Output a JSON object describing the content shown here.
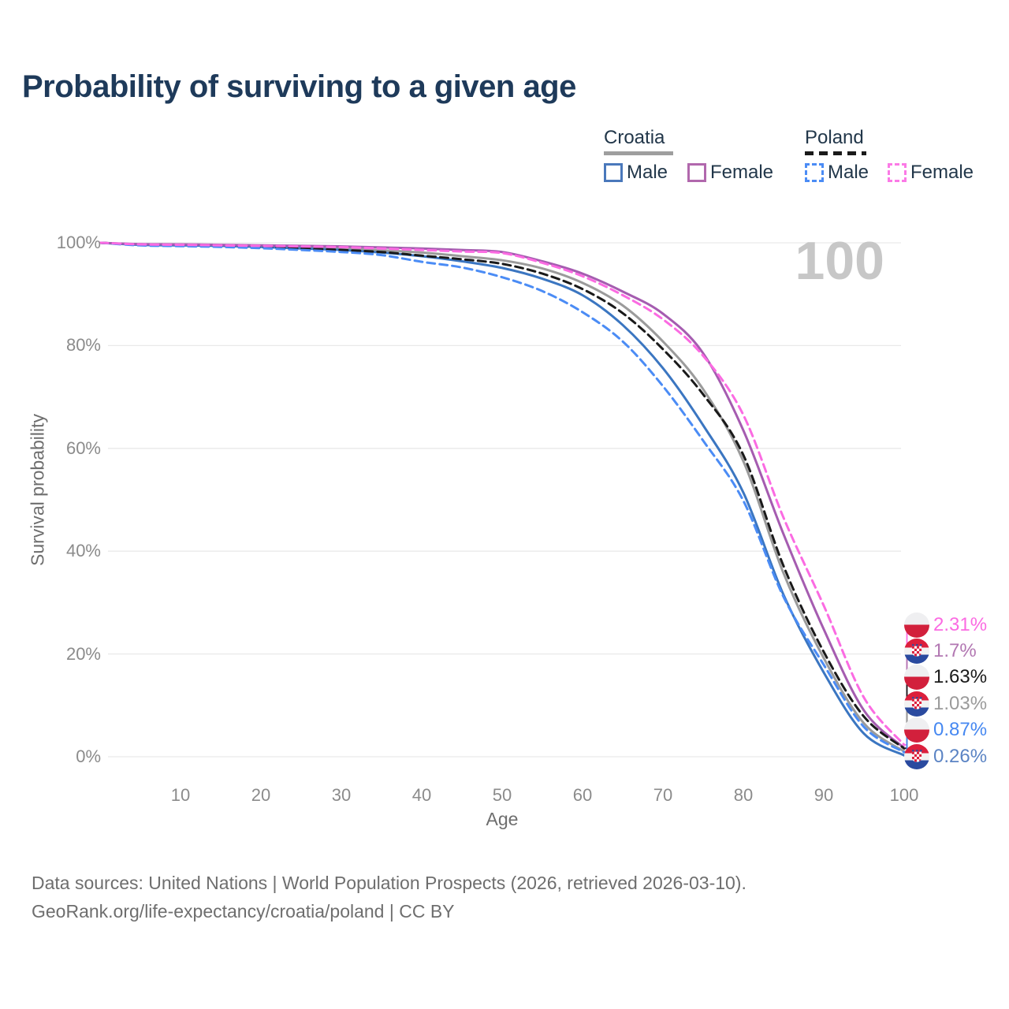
{
  "title": {
    "text": "Probability of surviving to a given age",
    "color": "#1e3a5a"
  },
  "legend": {
    "text_color": "#22374a",
    "groups": [
      {
        "label": "Croatia",
        "line_style": "solid",
        "line_color": "#9e9e9e",
        "items": [
          {
            "label": "Male",
            "style": "solid",
            "color": "#4a78bb"
          },
          {
            "label": "Female",
            "style": "solid",
            "color": "#b168ad"
          }
        ]
      },
      {
        "label": "Poland",
        "line_style": "dashed",
        "line_color": "#1a1a1a",
        "items": [
          {
            "label": "Male",
            "style": "dashed",
            "color": "#4b8cf5"
          },
          {
            "label": "Female",
            "style": "dashed",
            "color": "#fb7ae6"
          }
        ]
      }
    ]
  },
  "watermark": {
    "text": "100",
    "color": "#c7c7c7"
  },
  "axes": {
    "y": {
      "title": "Survival probability",
      "tick_labels": [
        "100%",
        "80%",
        "60%",
        "40%",
        "20%",
        "0%"
      ],
      "tick_values": [
        100,
        80,
        60,
        40,
        20,
        0
      ]
    },
    "x": {
      "title": "Age",
      "tick_labels": [
        "10",
        "20",
        "30",
        "40",
        "50",
        "60",
        "70",
        "80",
        "90",
        "100"
      ],
      "tick_values": [
        10,
        20,
        30,
        40,
        50,
        60,
        70,
        80,
        90,
        100
      ]
    }
  },
  "end_labels": [
    {
      "value": "2.31%",
      "flag": "poland",
      "series": "Poland Female",
      "color": "#fb6be2"
    },
    {
      "value": "1.7%",
      "flag": "croatia",
      "series": "Croatia Female",
      "color": "#b277b2"
    },
    {
      "value": "1.63%",
      "flag": "poland",
      "series": "Poland Both sexes",
      "color": "#1a1a1a"
    },
    {
      "value": "1.03%",
      "flag": "croatia",
      "series": "Croatia Both sexes",
      "color": "#9b9b9b"
    },
    {
      "value": "0.87%",
      "flag": "poland",
      "series": "Poland Male",
      "color": "#4688f1"
    },
    {
      "value": "0.26%",
      "flag": "croatia",
      "series": "Croatia Male",
      "color": "#5b84c4"
    }
  ],
  "footer": {
    "line1": "Data sources: United Nations | World Population Prospects (2026, retrieved 2026-03-10).",
    "line2": "GeoRank.org/life-expectancy/croatia/poland | CC BY",
    "color": "#6e6e6e"
  },
  "chart_data": {
    "type": "line",
    "title": "Probability of surviving to a given age",
    "xlabel": "Age",
    "ylabel": "Survival probability",
    "xlim": [
      0,
      100
    ],
    "ylim": [
      0,
      100
    ],
    "y_unit": "%",
    "grid": "horizontal",
    "hover_age_indicator": "100",
    "legend_position": "top-right",
    "x": [
      0,
      5,
      10,
      15,
      20,
      25,
      30,
      35,
      40,
      45,
      50,
      55,
      60,
      65,
      70,
      75,
      80,
      85,
      90,
      95,
      100
    ],
    "series": [
      {
        "name": "Croatia Both sexes",
        "country": "Croatia",
        "sex": "Both sexes",
        "style": "solid",
        "color": "#9b9b9b",
        "end_label": "1.03%",
        "values": [
          100,
          99.65,
          99.6,
          99.5,
          99.35,
          99.15,
          98.9,
          98.55,
          98.1,
          97.4,
          96.6,
          95.0,
          92.2,
          87.8,
          80.8,
          71.5,
          57.5,
          35.7,
          19.2,
          6.5,
          1.03
        ]
      },
      {
        "name": "Croatia Male",
        "country": "Croatia",
        "sex": "Male",
        "style": "solid",
        "color": "#3b76c1",
        "end_label": "0.26%",
        "values": [
          100,
          99.6,
          99.5,
          99.4,
          99.2,
          98.9,
          98.6,
          98.1,
          97.4,
          96.4,
          95.1,
          93.0,
          89.8,
          84.0,
          75.6,
          64.5,
          51.4,
          31.5,
          16.4,
          4.5,
          0.26
        ]
      },
      {
        "name": "Croatia Female",
        "country": "Croatia",
        "sex": "Female",
        "style": "solid",
        "color": "#a55cb0",
        "end_label": "1.7%",
        "values": [
          100,
          99.75,
          99.7,
          99.6,
          99.5,
          99.4,
          99.3,
          99.1,
          98.9,
          98.6,
          98.2,
          96.4,
          94.0,
          90.5,
          86.2,
          78.5,
          63.5,
          43.3,
          24.8,
          9.0,
          1.7
        ]
      },
      {
        "name": "Poland Both sexes",
        "country": "Poland",
        "sex": "Both sexes",
        "style": "dashed",
        "color": "#1a1a1a",
        "end_label": "1.63%",
        "values": [
          100,
          99.6,
          99.5,
          99.35,
          99.15,
          98.9,
          98.6,
          98.2,
          97.5,
          96.8,
          95.9,
          94.0,
          91.0,
          86.3,
          79.3,
          70.5,
          58.7,
          37.1,
          20.4,
          7.8,
          1.63
        ]
      },
      {
        "name": "Poland Male",
        "country": "Poland",
        "sex": "Male",
        "style": "dashed",
        "color": "#4b8cf5",
        "end_label": "0.87%",
        "values": [
          100,
          99.5,
          99.35,
          99.2,
          98.95,
          98.6,
          98.2,
          97.6,
          96.3,
          95.2,
          93.3,
          90.6,
          86.5,
          80.8,
          72.1,
          61.5,
          49.8,
          31.1,
          17.9,
          5.8,
          0.87
        ]
      },
      {
        "name": "Poland Female",
        "country": "Poland",
        "sex": "Female",
        "style": "dashed",
        "color": "#fb6be2",
        "end_label": "2.31%",
        "values": [
          100,
          99.7,
          99.6,
          99.5,
          99.4,
          99.3,
          99.15,
          98.9,
          98.6,
          98.3,
          98.0,
          96.1,
          93.5,
          89.8,
          85.1,
          78.0,
          66.5,
          46.5,
          29.4,
          11.5,
          2.31
        ]
      }
    ]
  }
}
